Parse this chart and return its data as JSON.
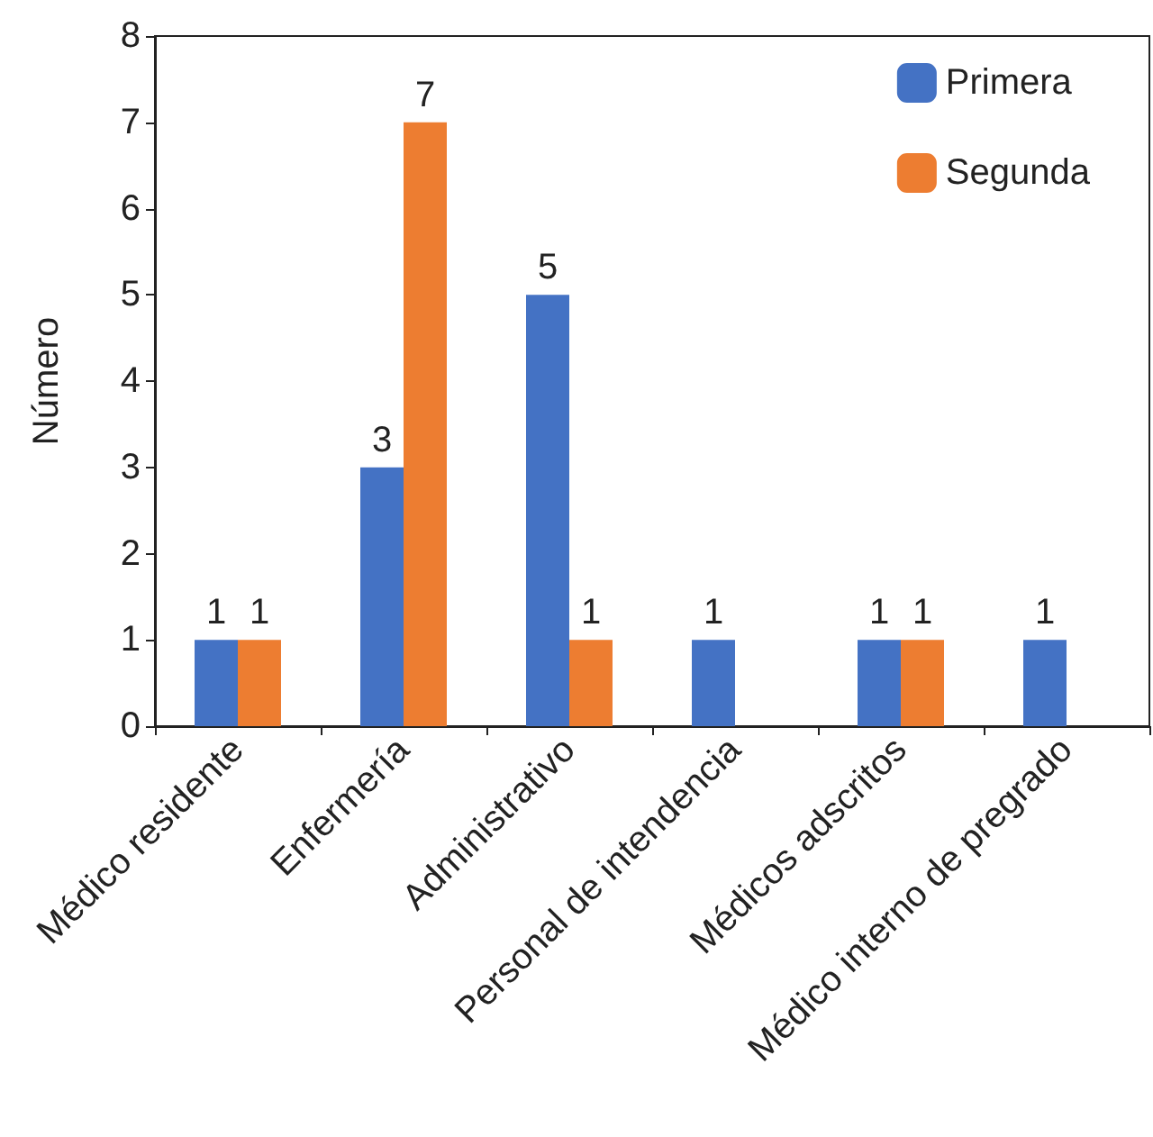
{
  "chart_data": {
    "type": "bar",
    "ylabel": "Número",
    "categories": [
      "Médico residente",
      "Enfermería",
      "Administrativo",
      "Personal de intendencia",
      "Médicos adscritos",
      "Médico interno de pregrado"
    ],
    "series": [
      {
        "name": "Primera",
        "color": "#4472c4",
        "values": [
          1,
          3,
          5,
          1,
          1,
          1
        ]
      },
      {
        "name": "Segunda",
        "color": "#ed7d31",
        "values": [
          1,
          7,
          1,
          null,
          1,
          null
        ]
      }
    ],
    "ylim": [
      0,
      8
    ],
    "yticks": [
      0,
      1,
      2,
      3,
      4,
      5,
      6,
      7,
      8
    ],
    "grid": false,
    "legend": "top right",
    "data_labels": true
  }
}
